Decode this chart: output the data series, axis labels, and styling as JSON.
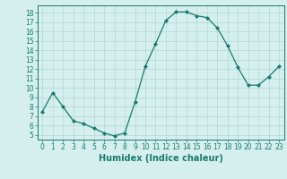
{
  "x": [
    0,
    1,
    2,
    3,
    4,
    5,
    6,
    7,
    8,
    9,
    10,
    11,
    12,
    13,
    14,
    15,
    16,
    17,
    18,
    19,
    20,
    21,
    22,
    23
  ],
  "y": [
    7.5,
    9.5,
    8.0,
    6.5,
    6.2,
    5.7,
    5.2,
    4.9,
    5.2,
    8.5,
    12.3,
    14.7,
    17.2,
    18.1,
    18.1,
    17.7,
    17.5,
    16.4,
    14.5,
    12.2,
    10.3,
    10.3,
    11.2,
    12.3
  ],
  "line_color": "#1a7a6e",
  "marker_color": "#1a7a6e",
  "bg_color": "#d4efed",
  "grid_color": "#b0d8d4",
  "xlabel": "Humidex (Indice chaleur)",
  "ylim": [
    4.5,
    18.8
  ],
  "xlim": [
    -0.5,
    23.5
  ],
  "yticks": [
    5,
    6,
    7,
    8,
    9,
    10,
    11,
    12,
    13,
    14,
    15,
    16,
    17,
    18
  ],
  "xticks": [
    0,
    1,
    2,
    3,
    4,
    5,
    6,
    7,
    8,
    9,
    10,
    11,
    12,
    13,
    14,
    15,
    16,
    17,
    18,
    19,
    20,
    21,
    22,
    23
  ],
  "tick_label_fontsize": 5.5,
  "xlabel_fontsize": 7.0
}
